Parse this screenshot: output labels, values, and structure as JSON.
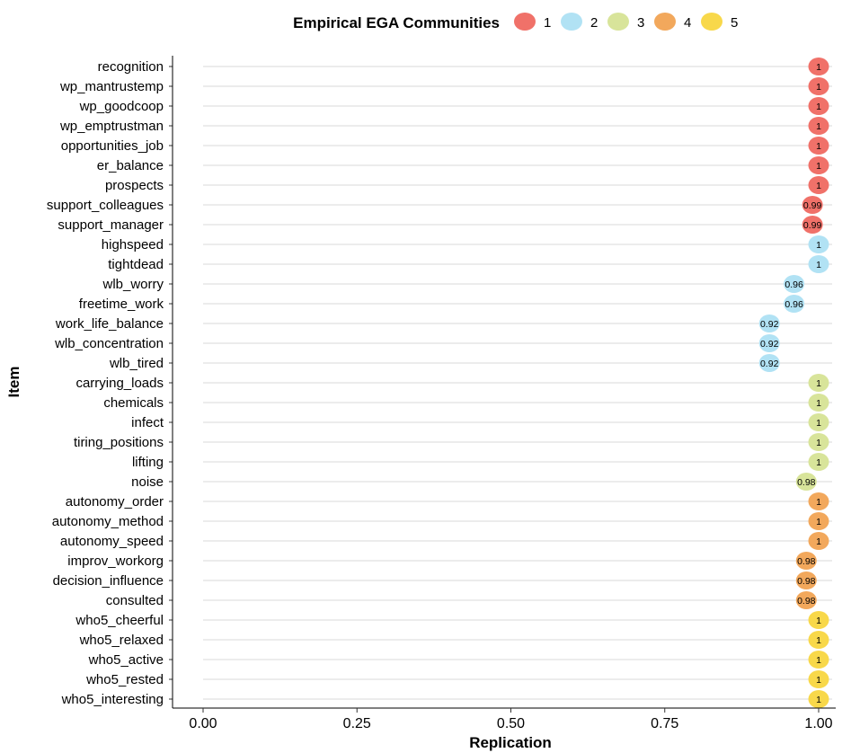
{
  "chart_data": {
    "type": "dot",
    "title": "",
    "xlabel": "Replication",
    "ylabel": "Item",
    "xlim": [
      0,
      1
    ],
    "xticks": [
      0.0,
      0.25,
      0.5,
      0.75,
      1.0
    ],
    "xtick_labels": [
      "0.00",
      "0.25",
      "0.50",
      "0.75",
      "1.00"
    ],
    "grid": "horizontal",
    "legend": {
      "title": "Empirical EGA Communities",
      "position": "top",
      "entries": [
        {
          "label": "1",
          "color": "#f07169"
        },
        {
          "label": "2",
          "color": "#b1e2f4"
        },
        {
          "label": "3",
          "color": "#d8e49a"
        },
        {
          "label": "4",
          "color": "#f2a85c"
        },
        {
          "label": "5",
          "color": "#f8d84a"
        }
      ]
    },
    "points": [
      {
        "item": "recognition",
        "value": 1,
        "label": "1",
        "community": "1"
      },
      {
        "item": "wp_mantrustemp",
        "value": 1,
        "label": "1",
        "community": "1"
      },
      {
        "item": "wp_goodcoop",
        "value": 1,
        "label": "1",
        "community": "1"
      },
      {
        "item": "wp_emptrustman",
        "value": 1,
        "label": "1",
        "community": "1"
      },
      {
        "item": "opportunities_job",
        "value": 1,
        "label": "1",
        "community": "1"
      },
      {
        "item": "er_balance",
        "value": 1,
        "label": "1",
        "community": "1"
      },
      {
        "item": "prospects",
        "value": 1,
        "label": "1",
        "community": "1"
      },
      {
        "item": "support_colleagues",
        "value": 0.99,
        "label": "0.99",
        "community": "1"
      },
      {
        "item": "support_manager",
        "value": 0.99,
        "label": "0.99",
        "community": "1"
      },
      {
        "item": "highspeed",
        "value": 1,
        "label": "1",
        "community": "2"
      },
      {
        "item": "tightdead",
        "value": 1,
        "label": "1",
        "community": "2"
      },
      {
        "item": "wlb_worry",
        "value": 0.96,
        "label": "0.96",
        "community": "2"
      },
      {
        "item": "freetime_work",
        "value": 0.96,
        "label": "0.96",
        "community": "2"
      },
      {
        "item": "work_life_balance",
        "value": 0.92,
        "label": "0.92",
        "community": "2"
      },
      {
        "item": "wlb_concentration",
        "value": 0.92,
        "label": "0.92",
        "community": "2"
      },
      {
        "item": "wlb_tired",
        "value": 0.92,
        "label": "0.92",
        "community": "2"
      },
      {
        "item": "carrying_loads",
        "value": 1,
        "label": "1",
        "community": "3"
      },
      {
        "item": "chemicals",
        "value": 1,
        "label": "1",
        "community": "3"
      },
      {
        "item": "infect",
        "value": 1,
        "label": "1",
        "community": "3"
      },
      {
        "item": "tiring_positions",
        "value": 1,
        "label": "1",
        "community": "3"
      },
      {
        "item": "lifting",
        "value": 1,
        "label": "1",
        "community": "3"
      },
      {
        "item": "noise",
        "value": 0.98,
        "label": "0.98",
        "community": "3"
      },
      {
        "item": "autonomy_order",
        "value": 1,
        "label": "1",
        "community": "4"
      },
      {
        "item": "autonomy_method",
        "value": 1,
        "label": "1",
        "community": "4"
      },
      {
        "item": "autonomy_speed",
        "value": 1,
        "label": "1",
        "community": "4"
      },
      {
        "item": "improv_workorg",
        "value": 0.98,
        "label": "0.98",
        "community": "4"
      },
      {
        "item": "decision_influence",
        "value": 0.98,
        "label": "0.98",
        "community": "4"
      },
      {
        "item": "consulted",
        "value": 0.98,
        "label": "0.98",
        "community": "4"
      },
      {
        "item": "who5_cheerful",
        "value": 1,
        "label": "1",
        "community": "5"
      },
      {
        "item": "who5_relaxed",
        "value": 1,
        "label": "1",
        "community": "5"
      },
      {
        "item": "who5_active",
        "value": 1,
        "label": "1",
        "community": "5"
      },
      {
        "item": "who5_rested",
        "value": 1,
        "label": "1",
        "community": "5"
      },
      {
        "item": "who5_interesting",
        "value": 1,
        "label": "1",
        "community": "5"
      }
    ]
  }
}
